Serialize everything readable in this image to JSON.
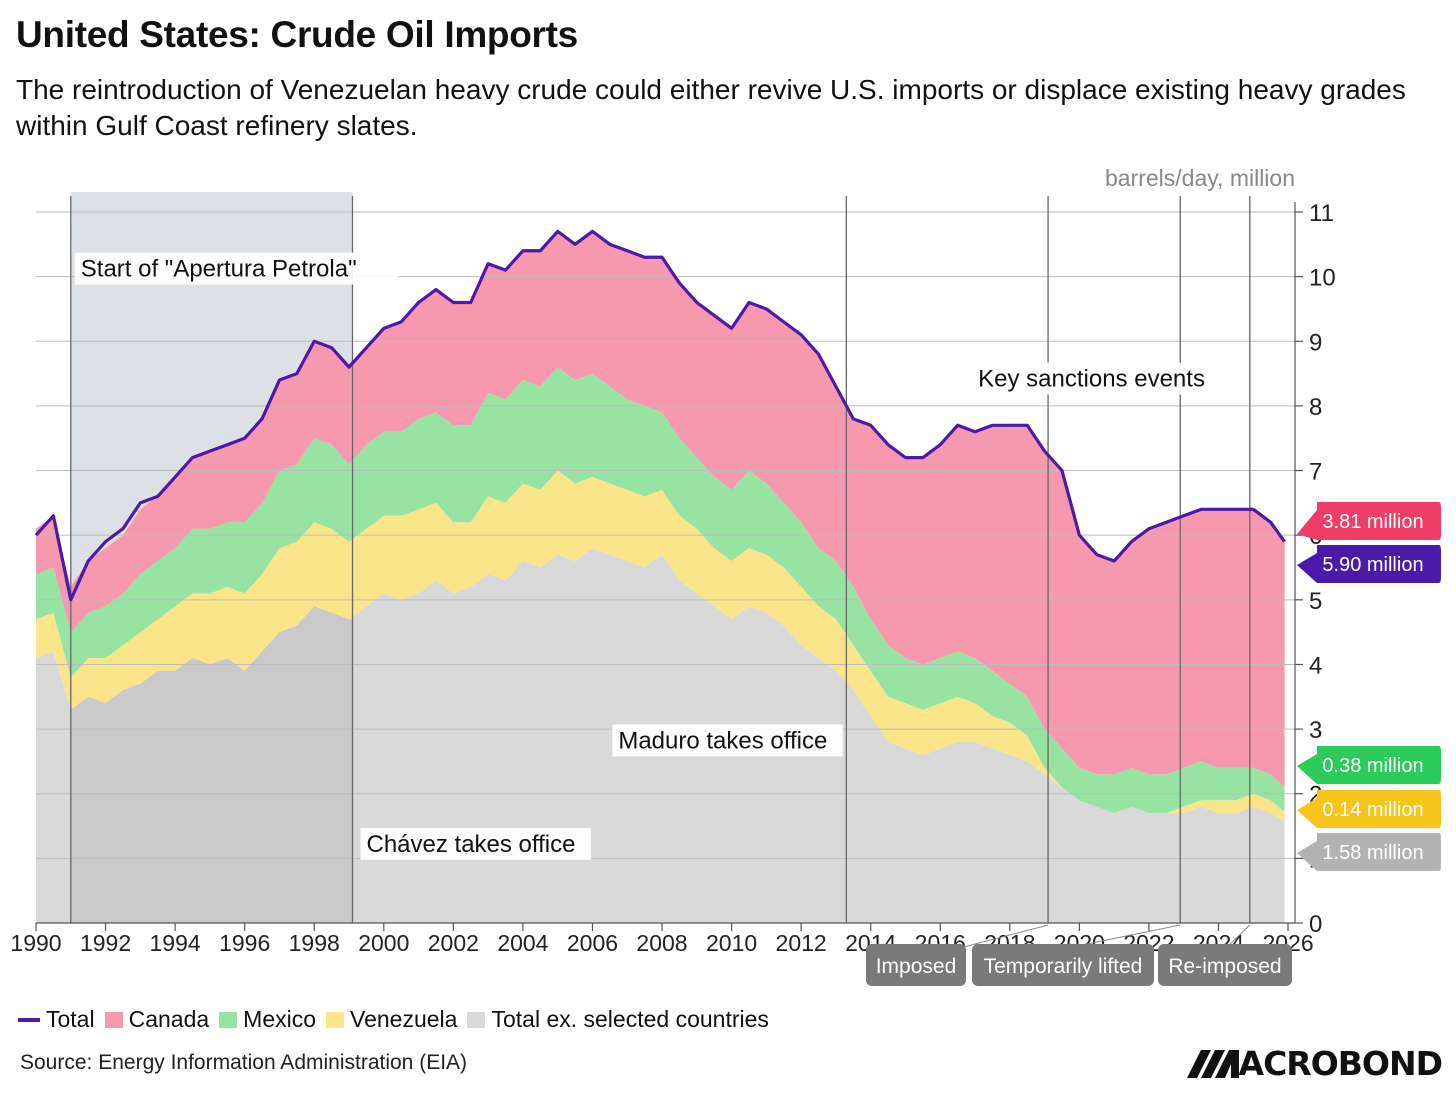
{
  "title": "United States: Crude Oil Imports",
  "subtitle": "The reintroduction of Venezuelan heavy crude could either revive U.S. imports or displace existing heavy grades within Gulf Coast refinery slates.",
  "source": "Source: Energy Information Administration (EIA)",
  "brand": "ACROBOND",
  "colors": {
    "total": "#4b1aa8",
    "canada": "#f799ae",
    "mexico": "#97e4a2",
    "venezuela": "#fae58a",
    "rest": "#d9d9d9",
    "shade": "#dde1e6",
    "label_canada": "#ee3e68",
    "label_total": "#4b1aa8",
    "label_mexico": "#2ccc5a",
    "label_venezuela": "#f5c51c",
    "label_rest": "#b3b3b3",
    "event_box": "#7a7a7a"
  },
  "legend": [
    {
      "key": "total",
      "label": "Total"
    },
    {
      "key": "canada",
      "label": "Canada"
    },
    {
      "key": "mexico",
      "label": "Mexico"
    },
    {
      "key": "venezuela",
      "label": "Venezuela"
    },
    {
      "key": "rest",
      "label": "Total ex. selected countries"
    }
  ],
  "chart_data": {
    "type": "area",
    "stacked": true,
    "title": "United States: Crude Oil Imports",
    "ylabel": "barrels/day, million",
    "ylim": [
      0,
      11
    ],
    "yticks": [
      "0",
      "1",
      "2",
      "3",
      "4",
      "5",
      "6",
      "7",
      "8",
      "9",
      "10",
      "11"
    ],
    "xlim": [
      1990,
      2026.2
    ],
    "xticks": [
      "1990",
      "1992",
      "1994",
      "1996",
      "1998",
      "2000",
      "2002",
      "2004",
      "2006",
      "2008",
      "2010",
      "2012",
      "2014",
      "2016",
      "2018",
      "2020",
      "2022",
      "2024",
      "2026"
    ],
    "x": [
      1990,
      1990.5,
      1991,
      1991.5,
      1992,
      1992.5,
      1993,
      1993.5,
      1994,
      1994.5,
      1995,
      1995.5,
      1996,
      1996.5,
      1997,
      1997.5,
      1998,
      1998.5,
      1999,
      1999.5,
      2000,
      2000.5,
      2001,
      2001.5,
      2002,
      2002.5,
      2003,
      2003.5,
      2004,
      2004.5,
      2005,
      2005.5,
      2006,
      2006.5,
      2007,
      2007.5,
      2008,
      2008.5,
      2009,
      2009.5,
      2010,
      2010.5,
      2011,
      2011.5,
      2012,
      2012.5,
      2013,
      2013.5,
      2014,
      2014.5,
      2015,
      2015.5,
      2016,
      2016.5,
      2017,
      2017.5,
      2018,
      2018.5,
      2019,
      2019.5,
      2020,
      2020.5,
      2021,
      2021.5,
      2022,
      2022.5,
      2023,
      2023.5,
      2024,
      2024.5,
      2025,
      2025.5,
      2025.9
    ],
    "series": [
      {
        "name": "Total ex. selected countries",
        "key": "rest",
        "values": [
          4.1,
          4.2,
          3.3,
          3.5,
          3.4,
          3.6,
          3.7,
          3.9,
          3.9,
          4.1,
          4.0,
          4.1,
          3.9,
          4.2,
          4.5,
          4.6,
          4.9,
          4.8,
          4.7,
          4.9,
          5.1,
          5.0,
          5.1,
          5.3,
          5.1,
          5.2,
          5.4,
          5.3,
          5.6,
          5.5,
          5.7,
          5.6,
          5.8,
          5.7,
          5.6,
          5.5,
          5.7,
          5.3,
          5.1,
          4.9,
          4.7,
          4.9,
          4.8,
          4.6,
          4.3,
          4.1,
          3.9,
          3.6,
          3.2,
          2.8,
          2.7,
          2.6,
          2.7,
          2.8,
          2.8,
          2.7,
          2.6,
          2.5,
          2.3,
          2.1,
          1.9,
          1.8,
          1.7,
          1.8,
          1.7,
          1.7,
          1.7,
          1.8,
          1.7,
          1.7,
          1.8,
          1.7,
          1.58
        ]
      },
      {
        "name": "Venezuela",
        "key": "venezuela",
        "values": [
          0.6,
          0.6,
          0.5,
          0.6,
          0.7,
          0.7,
          0.8,
          0.8,
          1.0,
          1.0,
          1.1,
          1.1,
          1.2,
          1.2,
          1.3,
          1.3,
          1.3,
          1.3,
          1.2,
          1.2,
          1.2,
          1.3,
          1.3,
          1.2,
          1.1,
          1.0,
          1.2,
          1.2,
          1.2,
          1.2,
          1.3,
          1.2,
          1.1,
          1.1,
          1.1,
          1.1,
          1.0,
          1.0,
          1.0,
          0.9,
          0.9,
          0.9,
          0.9,
          0.9,
          0.9,
          0.8,
          0.8,
          0.7,
          0.7,
          0.7,
          0.7,
          0.7,
          0.7,
          0.7,
          0.6,
          0.5,
          0.5,
          0.4,
          0.1,
          0.0,
          0.0,
          0.0,
          0.0,
          0.0,
          0.0,
          0.0,
          0.1,
          0.1,
          0.2,
          0.2,
          0.2,
          0.2,
          0.14
        ]
      },
      {
        "name": "Mexico",
        "key": "mexico",
        "values": [
          0.7,
          0.7,
          0.7,
          0.7,
          0.8,
          0.8,
          0.9,
          0.9,
          0.9,
          1.0,
          1.0,
          1.0,
          1.1,
          1.1,
          1.2,
          1.2,
          1.3,
          1.3,
          1.2,
          1.3,
          1.3,
          1.3,
          1.4,
          1.4,
          1.5,
          1.5,
          1.6,
          1.6,
          1.6,
          1.6,
          1.6,
          1.6,
          1.6,
          1.5,
          1.4,
          1.4,
          1.2,
          1.2,
          1.1,
          1.1,
          1.1,
          1.2,
          1.1,
          1.0,
          1.0,
          0.9,
          0.9,
          0.9,
          0.8,
          0.8,
          0.7,
          0.7,
          0.7,
          0.7,
          0.7,
          0.7,
          0.6,
          0.6,
          0.6,
          0.6,
          0.5,
          0.5,
          0.6,
          0.6,
          0.6,
          0.6,
          0.6,
          0.6,
          0.5,
          0.5,
          0.4,
          0.4,
          0.38
        ]
      },
      {
        "name": "Canada",
        "key": "canada",
        "values": [
          0.7,
          0.8,
          0.7,
          0.8,
          0.9,
          0.9,
          1.0,
          1.0,
          1.1,
          1.1,
          1.2,
          1.2,
          1.3,
          1.3,
          1.4,
          1.4,
          1.5,
          1.5,
          1.5,
          1.5,
          1.6,
          1.7,
          1.8,
          1.9,
          1.9,
          1.9,
          2.0,
          2.0,
          2.0,
          2.1,
          2.1,
          2.1,
          2.2,
          2.2,
          2.3,
          2.3,
          2.4,
          2.4,
          2.4,
          2.5,
          2.5,
          2.6,
          2.7,
          2.8,
          2.9,
          3.0,
          2.7,
          2.6,
          3.0,
          3.1,
          3.1,
          3.2,
          3.3,
          3.5,
          3.5,
          3.8,
          4.0,
          4.2,
          4.3,
          4.3,
          3.6,
          3.4,
          3.3,
          3.5,
          3.8,
          3.9,
          3.9,
          3.9,
          4.0,
          4.0,
          4.0,
          3.9,
          3.81
        ]
      },
      {
        "name": "Total",
        "key": "total",
        "line": true,
        "values": [
          6.0,
          6.3,
          5.0,
          5.6,
          5.9,
          6.1,
          6.5,
          6.6,
          6.9,
          7.2,
          7.3,
          7.4,
          7.5,
          7.8,
          8.4,
          8.5,
          9.0,
          8.9,
          8.6,
          8.9,
          9.2,
          9.3,
          9.6,
          9.8,
          9.6,
          9.6,
          10.2,
          10.1,
          10.4,
          10.4,
          10.7,
          10.5,
          10.7,
          10.5,
          10.4,
          10.3,
          10.3,
          9.9,
          9.6,
          9.4,
          9.2,
          9.6,
          9.5,
          9.3,
          9.1,
          8.8,
          8.3,
          7.8,
          7.7,
          7.4,
          7.2,
          7.2,
          7.4,
          7.7,
          7.6,
          7.7,
          7.7,
          7.7,
          7.3,
          7.0,
          6.0,
          5.7,
          5.6,
          5.9,
          6.1,
          6.2,
          6.3,
          6.4,
          6.4,
          6.4,
          6.4,
          6.2,
          5.9
        ]
      }
    ],
    "end_labels": [
      {
        "key": "canada",
        "text": "3.81 million"
      },
      {
        "key": "total",
        "text": "5.90 million"
      },
      {
        "key": "mexico",
        "text": "0.38 million"
      },
      {
        "key": "venezuela",
        "text": "0.14 million"
      },
      {
        "key": "rest",
        "text": "1.58 million"
      }
    ],
    "shaded_period": {
      "from": 1991,
      "to": 1999.1
    },
    "vertical_lines": [
      1991,
      1999.1,
      2013.3,
      2019.1,
      2022.9,
      2024.9
    ],
    "annotations": [
      {
        "text": "Start of \"Apertura Petrola\"",
        "x": 1991,
        "y": 10.0
      },
      {
        "text": "Chávez takes office",
        "x": 1999.1,
        "y": 1.1
      },
      {
        "text": "Maduro takes office",
        "x": 2013.3,
        "y": 2.7
      },
      {
        "text": "Key sanctions events",
        "x": 2018.7,
        "y": 8.3
      }
    ],
    "event_labels": [
      {
        "text": "Imposed",
        "x": 2019.1
      },
      {
        "text": "Temporarily lifted",
        "x": 2022.9
      },
      {
        "text": "Re-imposed",
        "x": 2024.9
      }
    ]
  }
}
